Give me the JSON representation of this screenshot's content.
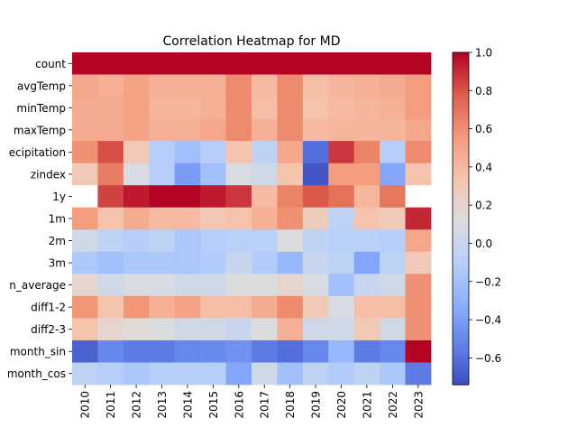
{
  "chart_data": {
    "type": "heatmap",
    "title": "Correlation Heatmap for MD",
    "xlabel": "",
    "ylabel": "",
    "rows": [
      "count",
      "avgTemp",
      "minTemp",
      "maxTemp",
      "ecipitation",
      "zindex",
      "1y",
      "1m",
      "2m",
      "3m",
      "n_average",
      "diff1-2",
      "diff2-3",
      "month_sin",
      "month_cos"
    ],
    "columns": [
      "2010",
      "2011",
      "2012",
      "2013",
      "2014",
      "2015",
      "2016",
      "2017",
      "2018",
      "2019",
      "2020",
      "2021",
      "2022",
      "2023"
    ],
    "values": [
      [
        1.0,
        1.0,
        1.0,
        1.0,
        1.0,
        1.0,
        1.0,
        1.0,
        1.0,
        1.0,
        1.0,
        1.0,
        1.0,
        1.0
      ],
      [
        0.5,
        0.45,
        0.52,
        0.45,
        0.45,
        0.45,
        0.62,
        0.4,
        0.62,
        0.38,
        0.42,
        0.45,
        0.48,
        0.55
      ],
      [
        0.48,
        0.48,
        0.52,
        0.42,
        0.42,
        0.45,
        0.62,
        0.38,
        0.62,
        0.35,
        0.4,
        0.42,
        0.45,
        0.55
      ],
      [
        0.48,
        0.48,
        0.52,
        0.45,
        0.45,
        0.5,
        0.62,
        0.45,
        0.62,
        0.4,
        0.42,
        0.42,
        0.42,
        0.5
      ],
      [
        0.6,
        0.82,
        0.3,
        -0.1,
        -0.2,
        -0.1,
        0.35,
        -0.05,
        0.5,
        -0.6,
        0.88,
        0.65,
        -0.1,
        0.62
      ],
      [
        0.3,
        0.68,
        0.1,
        -0.1,
        -0.4,
        -0.2,
        0.1,
        0.05,
        0.35,
        -0.7,
        0.55,
        0.55,
        -0.35,
        0.35
      ],
      [
        null,
        0.85,
        0.95,
        1.0,
        1.0,
        0.95,
        0.88,
        0.4,
        0.65,
        0.8,
        0.72,
        0.42,
        0.7,
        null
      ],
      [
        0.55,
        0.35,
        0.48,
        0.4,
        0.4,
        0.32,
        0.35,
        0.45,
        0.6,
        0.28,
        -0.05,
        0.35,
        0.3,
        0.92
      ],
      [
        0.05,
        -0.05,
        -0.1,
        -0.05,
        -0.15,
        -0.1,
        -0.08,
        -0.08,
        0.12,
        -0.05,
        -0.08,
        -0.08,
        -0.1,
        0.5
      ],
      [
        -0.15,
        -0.2,
        -0.15,
        -0.15,
        -0.15,
        -0.12,
        0.0,
        -0.12,
        -0.25,
        0.0,
        -0.05,
        -0.35,
        -0.05,
        0.3
      ],
      [
        0.2,
        0.05,
        0.1,
        0.1,
        0.05,
        0.05,
        0.12,
        0.12,
        0.2,
        0.1,
        -0.2,
        0.0,
        0.05,
        0.6
      ],
      [
        0.58,
        0.35,
        0.58,
        0.45,
        0.52,
        0.38,
        0.38,
        0.48,
        0.62,
        0.3,
        0.1,
        0.38,
        0.38,
        0.6
      ],
      [
        0.35,
        0.2,
        0.15,
        0.12,
        0.05,
        0.05,
        0.0,
        0.12,
        0.45,
        0.05,
        0.05,
        0.3,
        0.05,
        0.6
      ],
      [
        -0.65,
        -0.5,
        -0.55,
        -0.55,
        -0.5,
        -0.48,
        -0.45,
        -0.55,
        -0.6,
        -0.5,
        -0.25,
        -0.55,
        -0.5,
        1.0
      ],
      [
        -0.05,
        -0.1,
        -0.15,
        -0.1,
        -0.1,
        -0.1,
        -0.35,
        0.05,
        -0.2,
        -0.05,
        -0.12,
        -0.05,
        -0.15,
        -0.55
      ]
    ],
    "colormap": "coolwarm",
    "vmin": -0.74,
    "vmax": 1.0,
    "colorbar_ticks": [
      "1.0",
      "0.8",
      "0.6",
      "0.4",
      "0.2",
      "0.0",
      "−0.2",
      "−0.4",
      "−0.6"
    ],
    "colorbar_tick_values": [
      1.0,
      0.8,
      0.6,
      0.4,
      0.2,
      0.0,
      -0.2,
      -0.4,
      -0.6
    ],
    "missing_color": "#ffffff",
    "grid": false,
    "legend": "colorbar-right"
  }
}
